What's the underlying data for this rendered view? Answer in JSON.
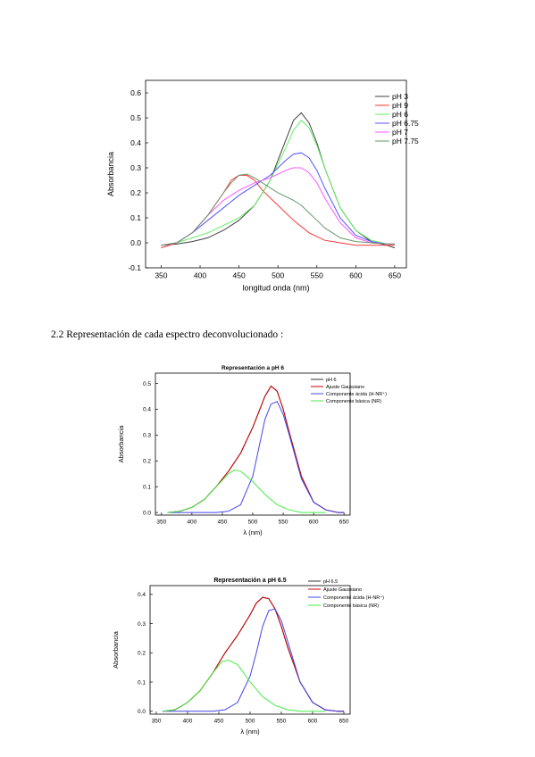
{
  "section": {
    "heading": "2.2 Representación de cada espectro deconvolucionado :"
  },
  "charts": [
    {
      "type": "line",
      "title": "",
      "xlabel": "longitud onda (nm)",
      "ylabel": "Absorbancia",
      "xlim": [
        330,
        665
      ],
      "ylim": [
        -0.1,
        0.65
      ],
      "xticks": [
        350,
        400,
        450,
        500,
        550,
        600,
        650
      ],
      "yticks": [
        -0.1,
        0.0,
        0.1,
        0.2,
        0.3,
        0.4,
        0.5,
        0.6
      ],
      "x_tick_labels": [
        "350",
        "400",
        "450",
        "500",
        "550",
        "600",
        "650"
      ],
      "y_tick_labels": [
        "-0.1",
        "0.0",
        "0.1",
        "0.2",
        "0.3",
        "0.4",
        "0.5",
        "0.6"
      ],
      "legend_position": "top-right",
      "series": [
        {
          "name": "pH 3",
          "color": "#404040",
          "x": [
            350,
            370,
            390,
            410,
            430,
            450,
            470,
            490,
            500,
            510,
            520,
            530,
            540,
            550,
            560,
            580,
            600,
            620,
            640,
            650
          ],
          "y": [
            -0.01,
            -0.005,
            0.005,
            0.02,
            0.05,
            0.09,
            0.15,
            0.25,
            0.33,
            0.41,
            0.49,
            0.52,
            0.48,
            0.4,
            0.3,
            0.14,
            0.05,
            0.005,
            -0.01,
            -0.02
          ]
        },
        {
          "name": "pH 9",
          "color": "#ff3333",
          "x": [
            350,
            370,
            390,
            410,
            430,
            440,
            450,
            460,
            470,
            480,
            500,
            520,
            540,
            560,
            580,
            600,
            620,
            640,
            650
          ],
          "y": [
            -0.02,
            0.0,
            0.04,
            0.11,
            0.2,
            0.25,
            0.27,
            0.27,
            0.25,
            0.21,
            0.15,
            0.09,
            0.04,
            0.01,
            0.0,
            -0.01,
            -0.01,
            -0.01,
            -0.01
          ]
        },
        {
          "name": "pH 6",
          "color": "#66ee66",
          "x": [
            350,
            370,
            390,
            410,
            430,
            450,
            470,
            490,
            510,
            520,
            530,
            540,
            550,
            560,
            580,
            600,
            620,
            640,
            650
          ],
          "y": [
            -0.01,
            0.0,
            0.02,
            0.04,
            0.07,
            0.1,
            0.15,
            0.25,
            0.38,
            0.45,
            0.49,
            0.46,
            0.39,
            0.3,
            0.14,
            0.05,
            0.01,
            -0.005,
            -0.005
          ]
        },
        {
          "name": "pH 6.75",
          "color": "#5555ff",
          "x": [
            350,
            370,
            390,
            410,
            430,
            450,
            470,
            490,
            510,
            520,
            530,
            540,
            550,
            560,
            580,
            600,
            620,
            640,
            650
          ],
          "y": [
            -0.01,
            0.0,
            0.04,
            0.09,
            0.14,
            0.19,
            0.23,
            0.27,
            0.33,
            0.355,
            0.36,
            0.34,
            0.29,
            0.22,
            0.1,
            0.03,
            0.005,
            -0.005,
            -0.005
          ]
        },
        {
          "name": "pH 7",
          "color": "#ff55ff",
          "x": [
            350,
            370,
            390,
            410,
            430,
            450,
            470,
            490,
            510,
            520,
            530,
            540,
            550,
            560,
            580,
            600,
            620,
            640,
            650
          ],
          "y": [
            -0.01,
            0.0,
            0.04,
            0.11,
            0.17,
            0.21,
            0.24,
            0.26,
            0.29,
            0.3,
            0.3,
            0.28,
            0.24,
            0.18,
            0.08,
            0.02,
            0.0,
            -0.005,
            -0.005
          ]
        },
        {
          "name": "pH 7.75",
          "color": "#669966",
          "x": [
            350,
            370,
            390,
            410,
            430,
            440,
            450,
            460,
            470,
            480,
            490,
            500,
            510,
            520,
            530,
            540,
            550,
            560,
            580,
            600,
            620,
            640,
            650
          ],
          "y": [
            -0.01,
            0.0,
            0.04,
            0.11,
            0.2,
            0.24,
            0.27,
            0.275,
            0.26,
            0.24,
            0.22,
            0.2,
            0.185,
            0.17,
            0.15,
            0.12,
            0.09,
            0.06,
            0.02,
            0.005,
            0.0,
            -0.005,
            -0.005
          ]
        }
      ]
    },
    {
      "type": "line",
      "title": "Representación a pH 6",
      "xlabel": "λ (nm)",
      "ylabel": "Absorbancia",
      "xlim": [
        340,
        660
      ],
      "ylim": [
        -0.01,
        0.54
      ],
      "xticks": [
        350,
        400,
        450,
        500,
        550,
        600,
        650
      ],
      "yticks": [
        0.0,
        0.1,
        0.2,
        0.3,
        0.4,
        0.5
      ],
      "x_tick_labels": [
        "350",
        "400",
        "450",
        "500",
        "550",
        "600",
        "650"
      ],
      "y_tick_labels": [
        "0.0",
        "0.1",
        "0.2",
        "0.3",
        "0.4",
        "0.5"
      ],
      "legend_position": "top-right",
      "series": [
        {
          "name": "pH 6",
          "color": "#333333",
          "x": [
            360,
            380,
            400,
            420,
            440,
            460,
            480,
            500,
            510,
            520,
            530,
            540,
            550,
            560,
            580,
            600,
            620,
            640,
            650
          ],
          "y": [
            0.0,
            0.005,
            0.02,
            0.05,
            0.1,
            0.16,
            0.23,
            0.33,
            0.39,
            0.45,
            0.49,
            0.47,
            0.4,
            0.31,
            0.14,
            0.04,
            0.01,
            0.0,
            0.0
          ]
        },
        {
          "name": "Ajuste Gaussiano",
          "color": "#cc0000",
          "x": [
            360,
            380,
            400,
            420,
            440,
            460,
            480,
            500,
            510,
            520,
            530,
            540,
            550,
            560,
            580,
            600,
            620,
            640,
            650
          ],
          "y": [
            0.0,
            0.005,
            0.02,
            0.05,
            0.1,
            0.16,
            0.23,
            0.33,
            0.39,
            0.45,
            0.49,
            0.47,
            0.4,
            0.31,
            0.14,
            0.04,
            0.01,
            0.0,
            0.0
          ]
        },
        {
          "name": "Componente ácida (H-NR⁺)",
          "color": "#4444ee",
          "x": [
            360,
            400,
            440,
            460,
            480,
            500,
            510,
            520,
            530,
            540,
            550,
            560,
            580,
            600,
            620,
            640,
            650
          ],
          "y": [
            0.0,
            0.0,
            0.0,
            0.005,
            0.03,
            0.14,
            0.25,
            0.36,
            0.42,
            0.43,
            0.38,
            0.3,
            0.13,
            0.04,
            0.01,
            0.0,
            0.0
          ]
        },
        {
          "name": "Componente básica (NR)",
          "color": "#44ee44",
          "x": [
            360,
            380,
            400,
            420,
            440,
            460,
            470,
            480,
            500,
            520,
            540,
            560,
            580,
            600,
            620
          ],
          "y": [
            0.0,
            0.005,
            0.02,
            0.05,
            0.1,
            0.15,
            0.165,
            0.16,
            0.12,
            0.07,
            0.03,
            0.01,
            0.0,
            0.0,
            0.0
          ]
        }
      ]
    },
    {
      "type": "line",
      "title": "Representación a pH 6.5",
      "xlabel": "λ (nm)",
      "ylabel": "Absorbancia",
      "xlim": [
        340,
        660
      ],
      "ylim": [
        -0.01,
        0.43
      ],
      "xticks": [
        350,
        400,
        450,
        500,
        550,
        600,
        650
      ],
      "yticks": [
        0.0,
        0.1,
        0.2,
        0.3,
        0.4
      ],
      "x_tick_labels": [
        "350",
        "400",
        "450",
        "500",
        "550",
        "600",
        "650"
      ],
      "y_tick_labels": [
        "0.0",
        "0.1",
        "0.2",
        "0.3",
        "0.4"
      ],
      "legend_position": "top-right",
      "series": [
        {
          "name": "pH 6.5",
          "color": "#333333",
          "x": [
            360,
            380,
            400,
            420,
            440,
            460,
            480,
            500,
            510,
            520,
            530,
            540,
            550,
            560,
            580,
            600,
            620,
            640,
            650
          ],
          "y": [
            0.0,
            0.005,
            0.03,
            0.07,
            0.13,
            0.2,
            0.26,
            0.33,
            0.37,
            0.39,
            0.385,
            0.35,
            0.29,
            0.22,
            0.1,
            0.03,
            0.005,
            0.0,
            0.0
          ]
        },
        {
          "name": "Ajuste Gaussiano",
          "color": "#cc0000",
          "x": [
            360,
            380,
            400,
            420,
            440,
            460,
            480,
            500,
            510,
            520,
            530,
            540,
            550,
            560,
            580,
            600,
            620,
            640,
            650
          ],
          "y": [
            0.0,
            0.005,
            0.03,
            0.07,
            0.13,
            0.2,
            0.26,
            0.33,
            0.37,
            0.39,
            0.385,
            0.35,
            0.29,
            0.22,
            0.1,
            0.03,
            0.005,
            0.0,
            0.0
          ]
        },
        {
          "name": "Componente ácida (H-NR⁺)",
          "color": "#4444ee",
          "x": [
            360,
            400,
            440,
            460,
            480,
            500,
            510,
            520,
            530,
            540,
            550,
            560,
            580,
            600,
            620,
            640,
            650
          ],
          "y": [
            0.0,
            0.0,
            0.0,
            0.005,
            0.03,
            0.12,
            0.2,
            0.29,
            0.345,
            0.35,
            0.31,
            0.24,
            0.1,
            0.03,
            0.005,
            0.0,
            0.0
          ]
        },
        {
          "name": "Componente básica (NR)",
          "color": "#44ee44",
          "x": [
            360,
            380,
            400,
            420,
            440,
            455,
            465,
            480,
            500,
            520,
            540,
            560,
            580,
            600,
            620
          ],
          "y": [
            0.0,
            0.005,
            0.03,
            0.07,
            0.13,
            0.17,
            0.175,
            0.16,
            0.1,
            0.05,
            0.02,
            0.005,
            0.0,
            0.0,
            0.0
          ]
        }
      ]
    }
  ]
}
